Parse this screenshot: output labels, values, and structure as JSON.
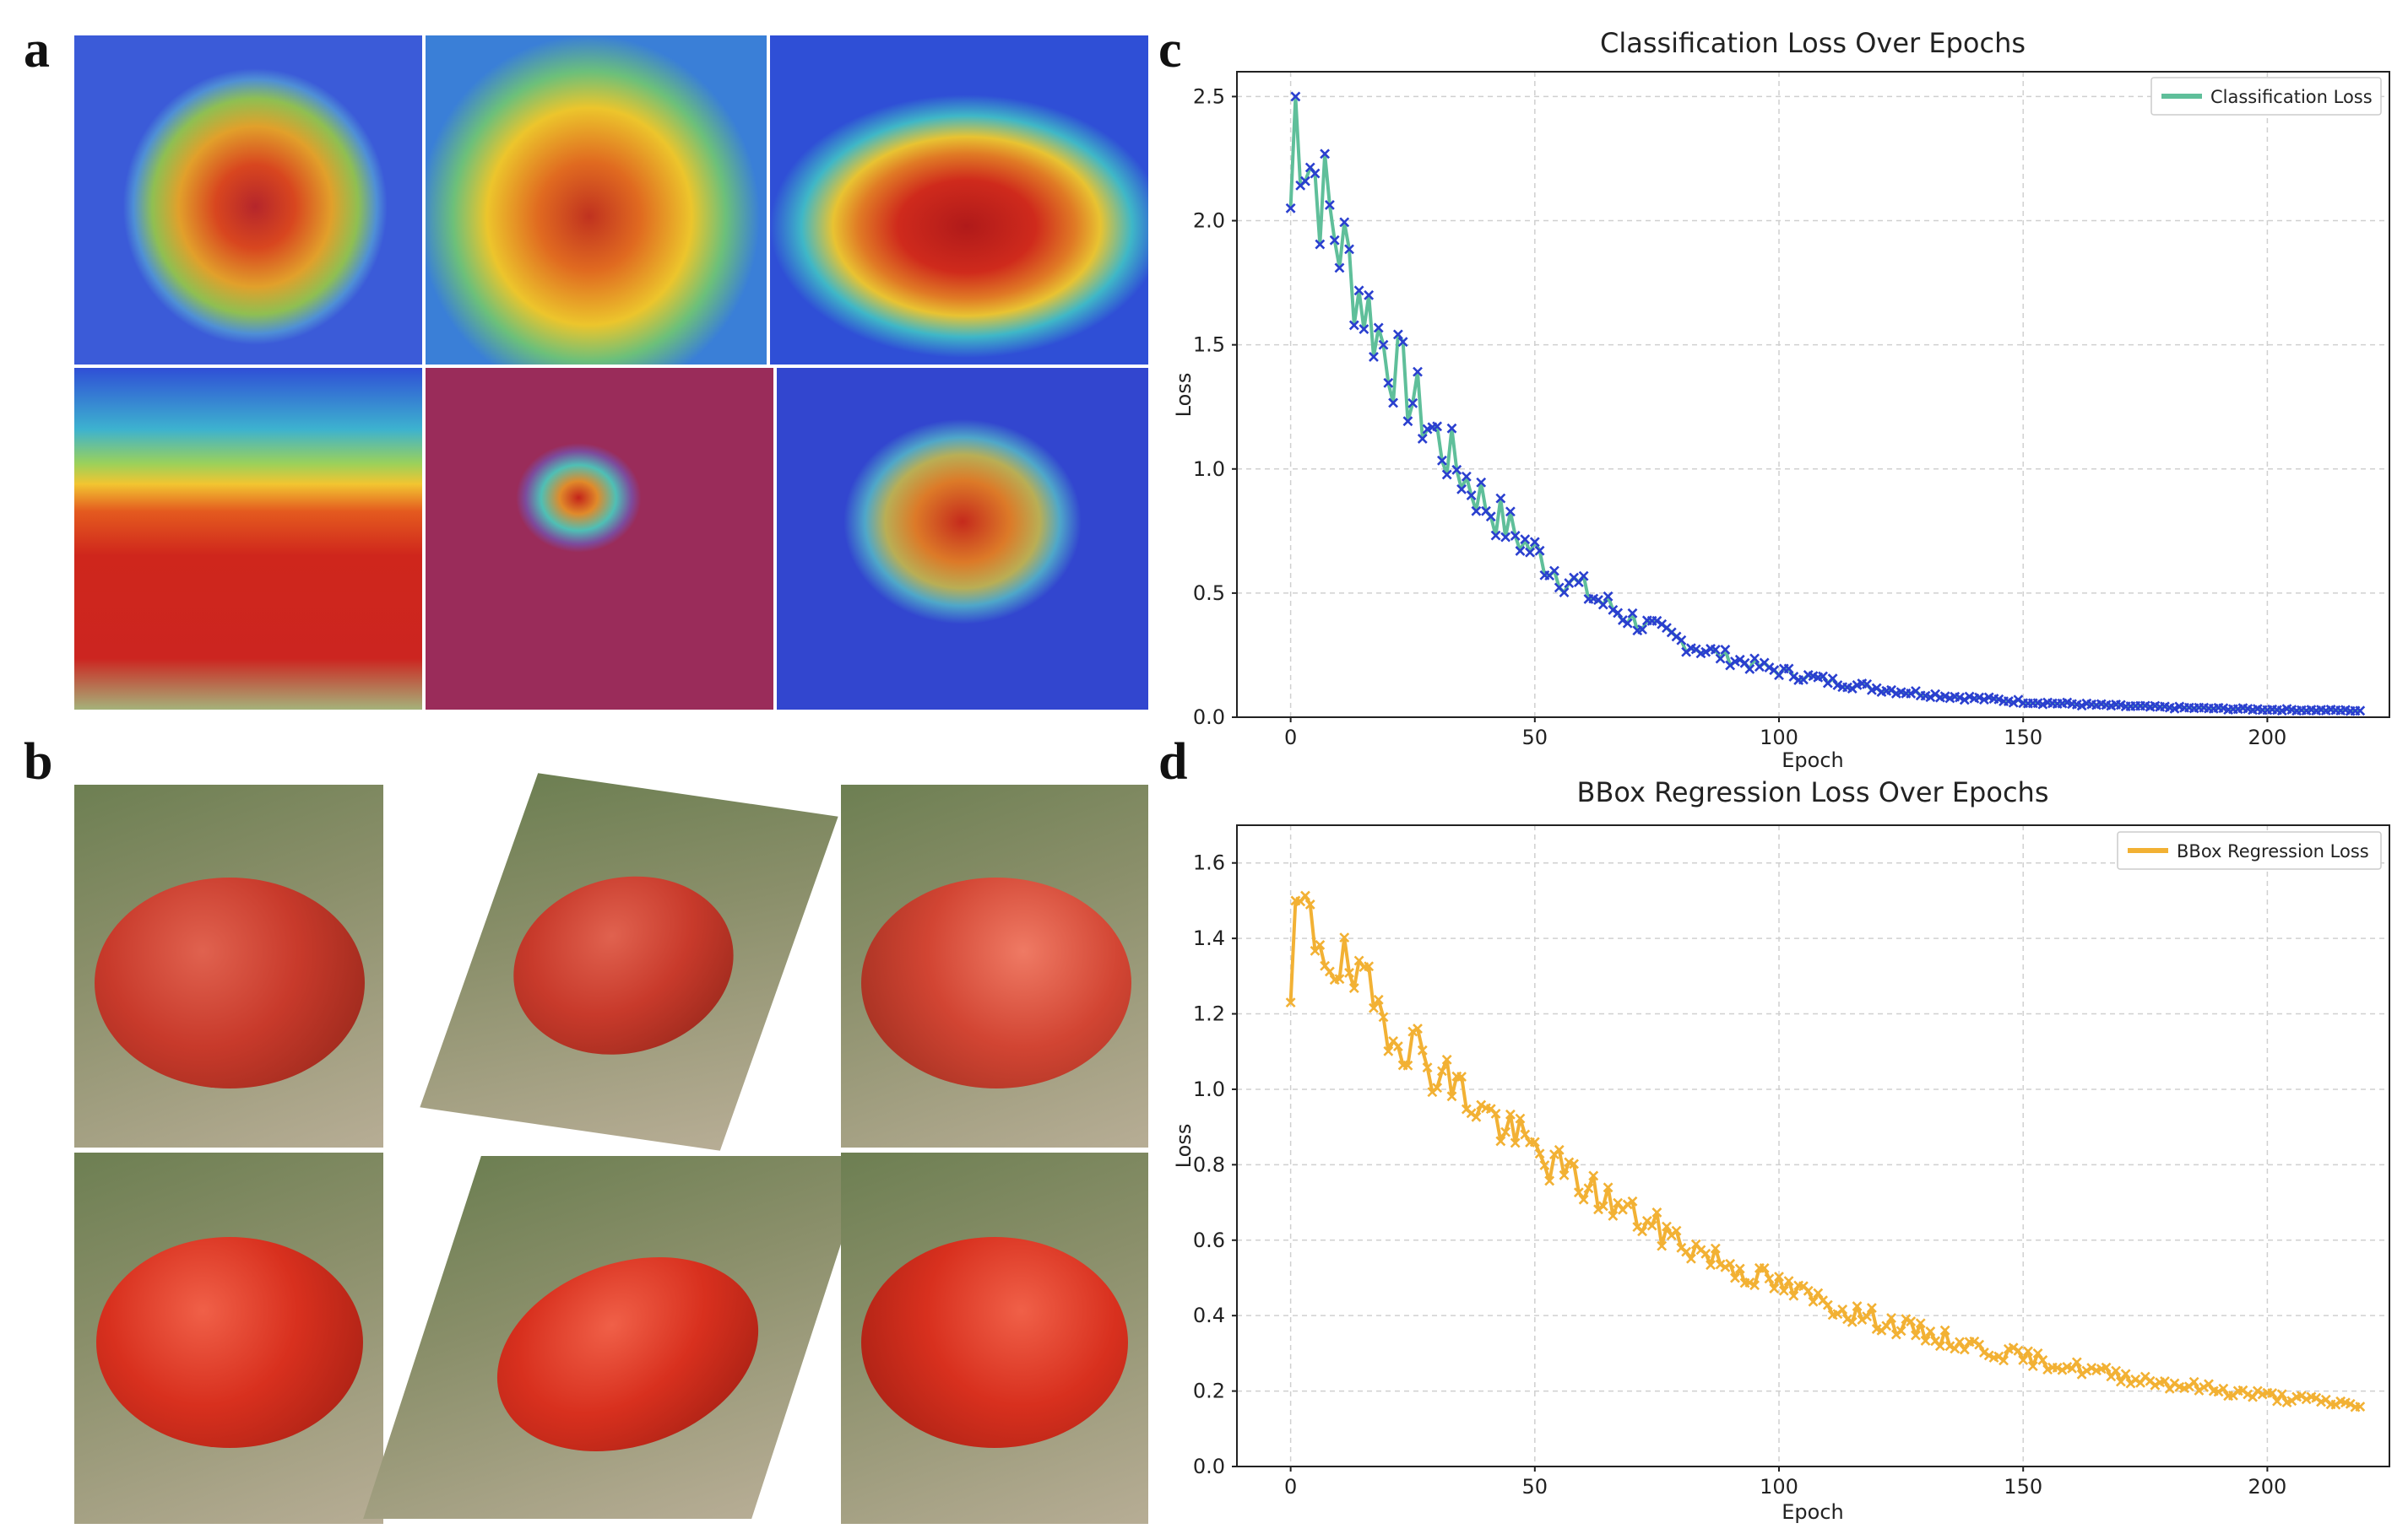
{
  "panels": {
    "a": "a",
    "b": "b",
    "c": "c",
    "d": "d"
  },
  "chart_data": [
    {
      "type": "line",
      "title": "Classification Loss Over Epochs",
      "xlabel": "Epoch",
      "ylabel": "Loss",
      "xlim": [
        -11,
        225
      ],
      "ylim": [
        0.0,
        2.6
      ],
      "xticks": [
        0,
        50,
        100,
        150,
        200
      ],
      "yticks": [
        0.0,
        0.5,
        1.0,
        1.5,
        2.0,
        2.5
      ],
      "grid": true,
      "legend_position": "top-right",
      "series": [
        {
          "name": "Classification Loss",
          "line_color": "#5fbf9a",
          "marker_color": "#2a3fcf",
          "marker": "x",
          "start": 2.5,
          "end": 0.02,
          "decay": 0.027,
          "noise": 0.25,
          "n": 220,
          "seed": 7
        }
      ]
    },
    {
      "type": "line",
      "title": "BBox Regression Loss Over Epochs",
      "xlabel": "Epoch",
      "ylabel": "Loss",
      "xlim": [
        -11,
        225
      ],
      "ylim": [
        0.0,
        1.7
      ],
      "xticks": [
        0,
        50,
        100,
        150,
        200
      ],
      "yticks": [
        0.0,
        0.2,
        0.4,
        0.6,
        0.8,
        1.0,
        1.2,
        1.4,
        1.6
      ],
      "grid": true,
      "legend_position": "top-right",
      "series": [
        {
          "name": "BBox Regression Loss",
          "line_color": "#f2b134",
          "marker_color": "#f2b134",
          "marker": "x",
          "start": 1.5,
          "end": 0.07,
          "decay": 0.0125,
          "noise": 0.14,
          "n": 220,
          "seed": 19
        }
      ]
    }
  ],
  "colors": {
    "grid": "#d0d0d0",
    "axis": "#222222"
  }
}
